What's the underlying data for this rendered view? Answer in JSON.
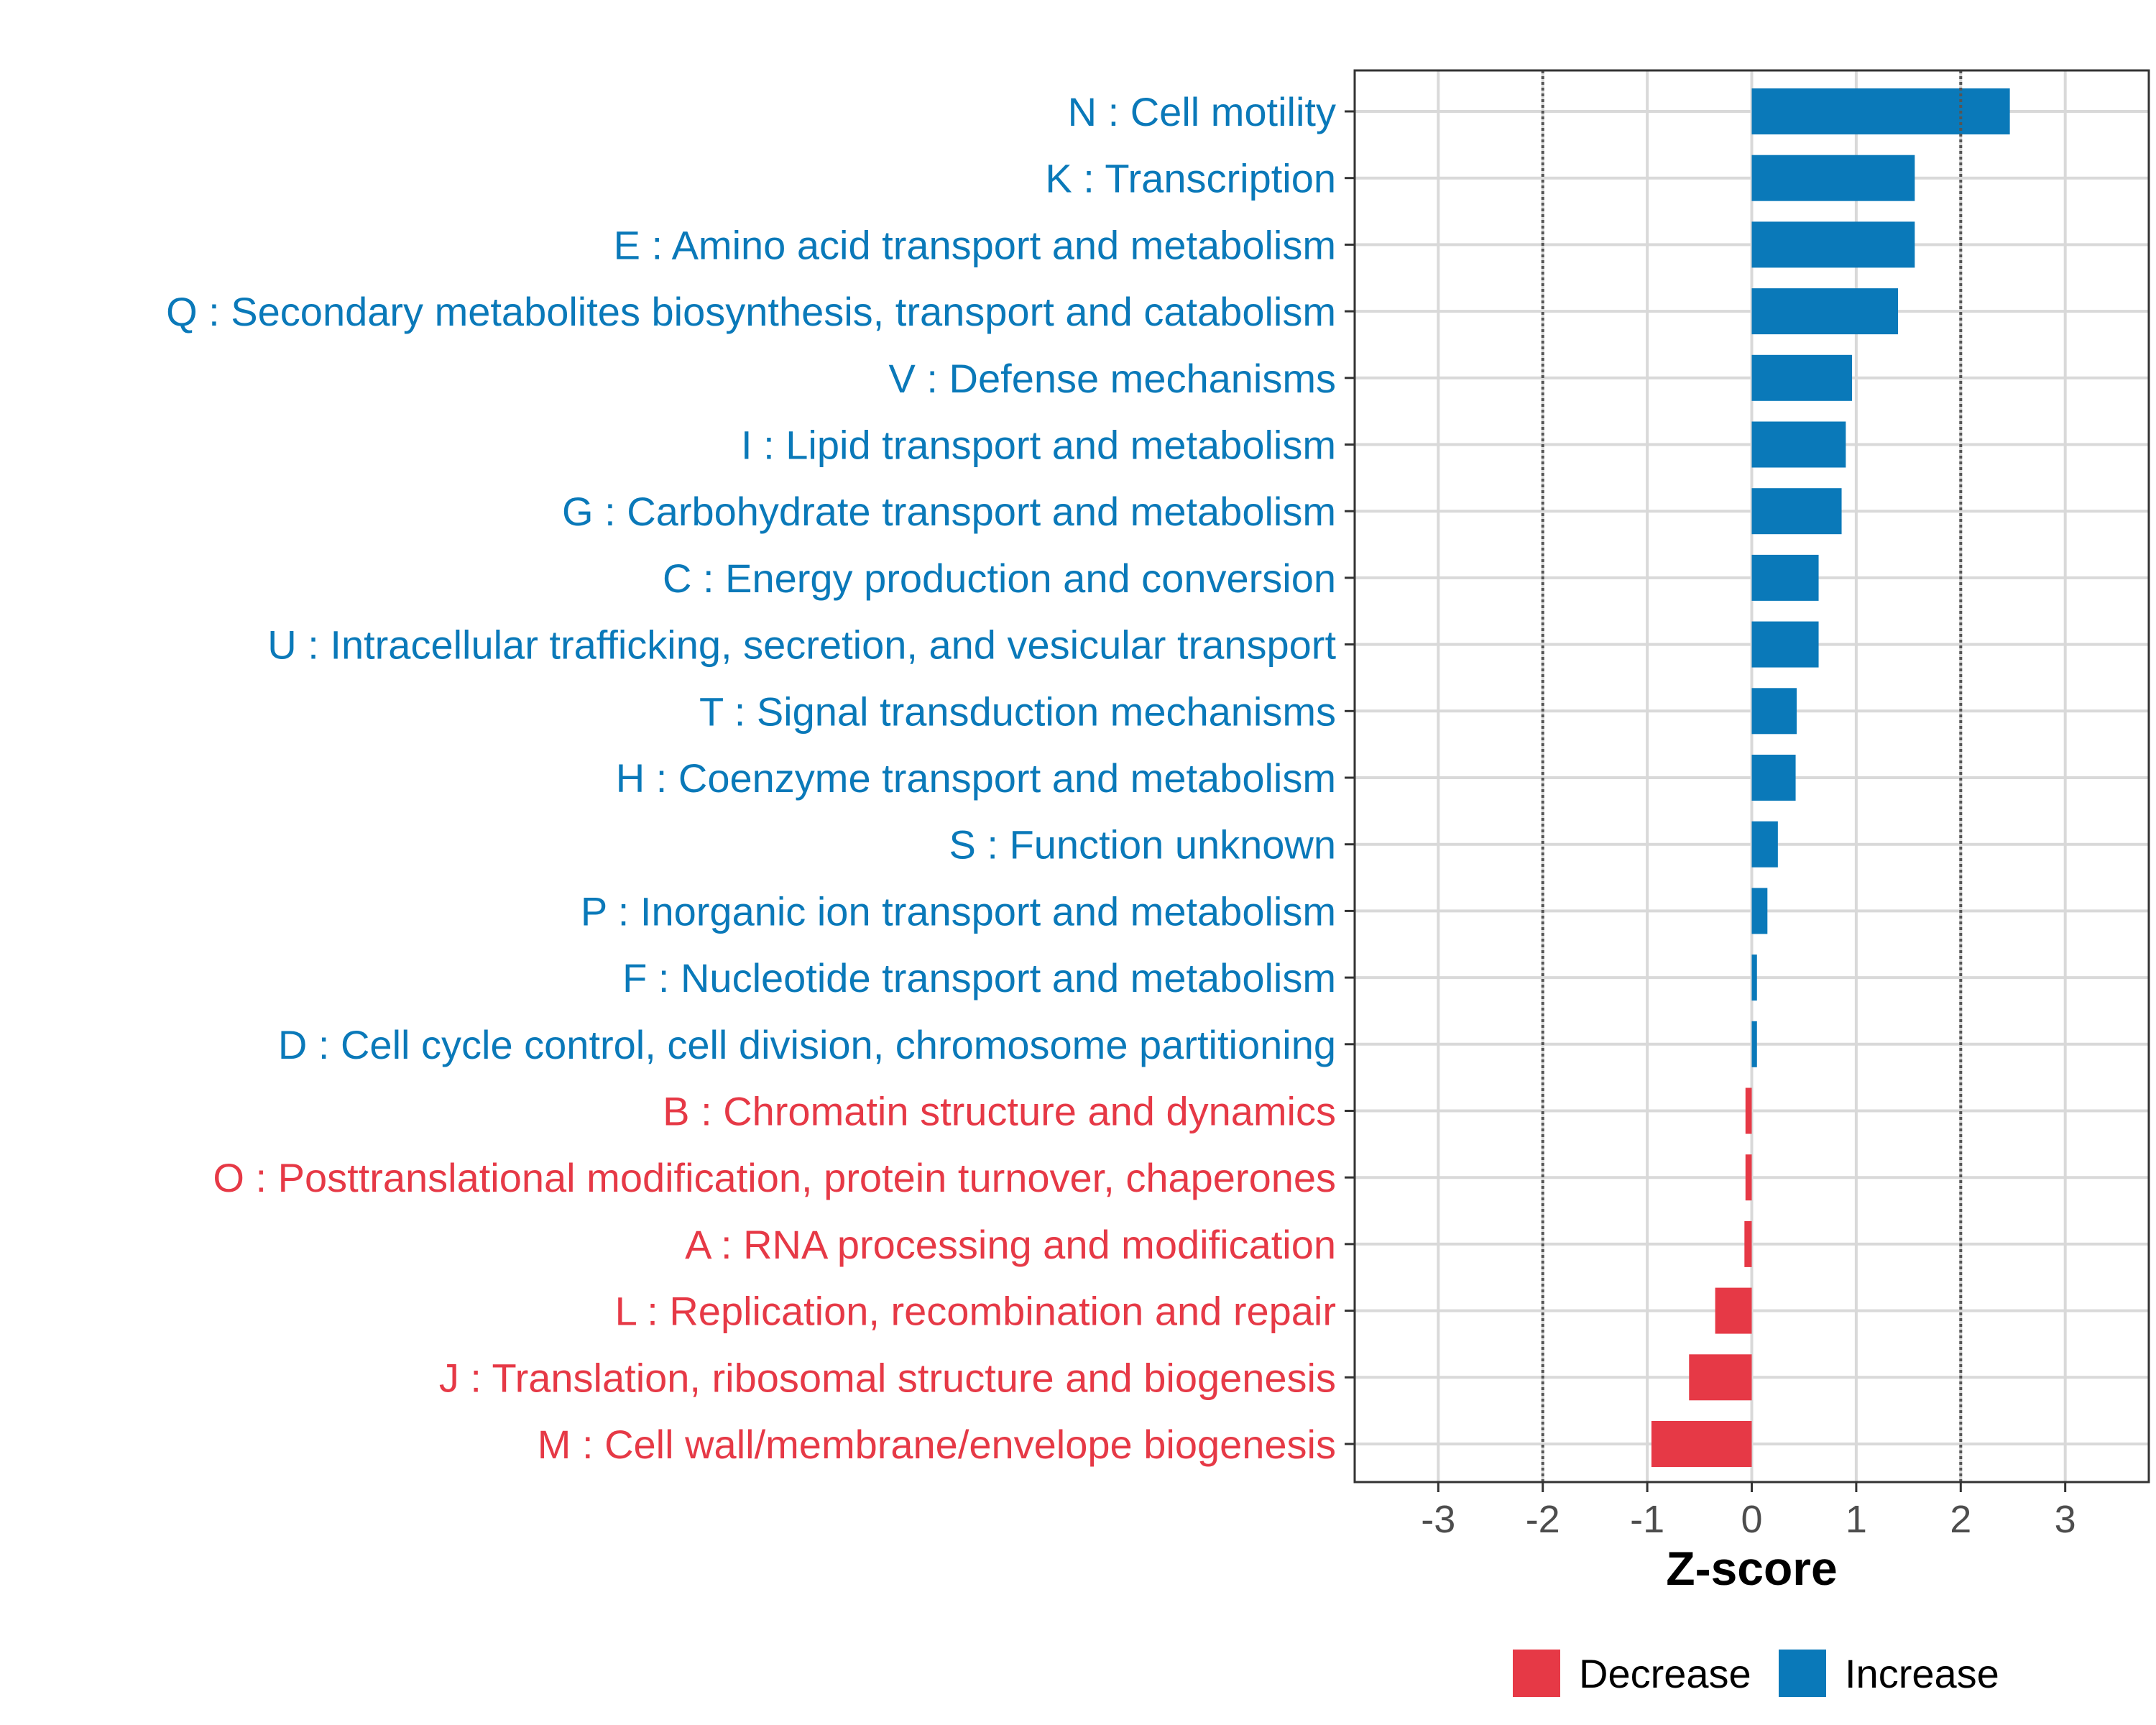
{
  "colors": {
    "increase": "#0a79b9",
    "decrease": "#e63946",
    "grid": "#d9d9d9",
    "axis": "#333333",
    "threshold": "#555555"
  },
  "chart_data": {
    "type": "bar",
    "orientation": "horizontal",
    "xlabel": "Z-score",
    "xlim": [
      -3.8,
      3.8
    ],
    "xticks": [
      -3,
      -2,
      -1,
      0,
      1,
      2,
      3
    ],
    "xtick_labels": [
      "-3",
      "-2",
      "-1",
      "0",
      "1",
      "2",
      "3"
    ],
    "threshold_lines": [
      -2,
      2
    ],
    "grid": true,
    "categories": [
      "N : Cell motility",
      "K : Transcription",
      "E : Amino acid transport and metabolism",
      "Q : Secondary metabolites biosynthesis, transport and catabolism",
      "V : Defense mechanisms",
      "I : Lipid transport and metabolism",
      "G : Carbohydrate transport and metabolism",
      "C : Energy production and conversion",
      "U : Intracellular trafficking, secretion, and vesicular transport",
      "T : Signal transduction mechanisms",
      "H : Coenzyme transport and metabolism",
      "S : Function unknown",
      "P : Inorganic ion transport and metabolism",
      "F : Nucleotide transport and metabolism",
      "D : Cell cycle control, cell division, chromosome partitioning",
      "B : Chromatin structure and dynamics",
      "O : Posttranslational modification, protein turnover, chaperones",
      "A : RNA processing and modification",
      "L : Replication, recombination and repair",
      "J : Translation, ribosomal structure and biogenesis",
      "M : Cell wall/membrane/envelope biogenesis"
    ],
    "values": [
      2.47,
      1.56,
      1.56,
      1.4,
      0.96,
      0.9,
      0.86,
      0.64,
      0.64,
      0.43,
      0.42,
      0.25,
      0.15,
      0.05,
      0.05,
      -0.06,
      -0.06,
      -0.07,
      -0.35,
      -0.6,
      -0.96
    ],
    "groups": [
      "Increase",
      "Increase",
      "Increase",
      "Increase",
      "Increase",
      "Increase",
      "Increase",
      "Increase",
      "Increase",
      "Increase",
      "Increase",
      "Increase",
      "Increase",
      "Increase",
      "Increase",
      "Decrease",
      "Decrease",
      "Decrease",
      "Decrease",
      "Decrease",
      "Decrease"
    ],
    "legend": {
      "position": "bottom",
      "entries": [
        {
          "label": "Decrease",
          "color": "#e63946"
        },
        {
          "label": "Increase",
          "color": "#0a79b9"
        }
      ]
    }
  }
}
